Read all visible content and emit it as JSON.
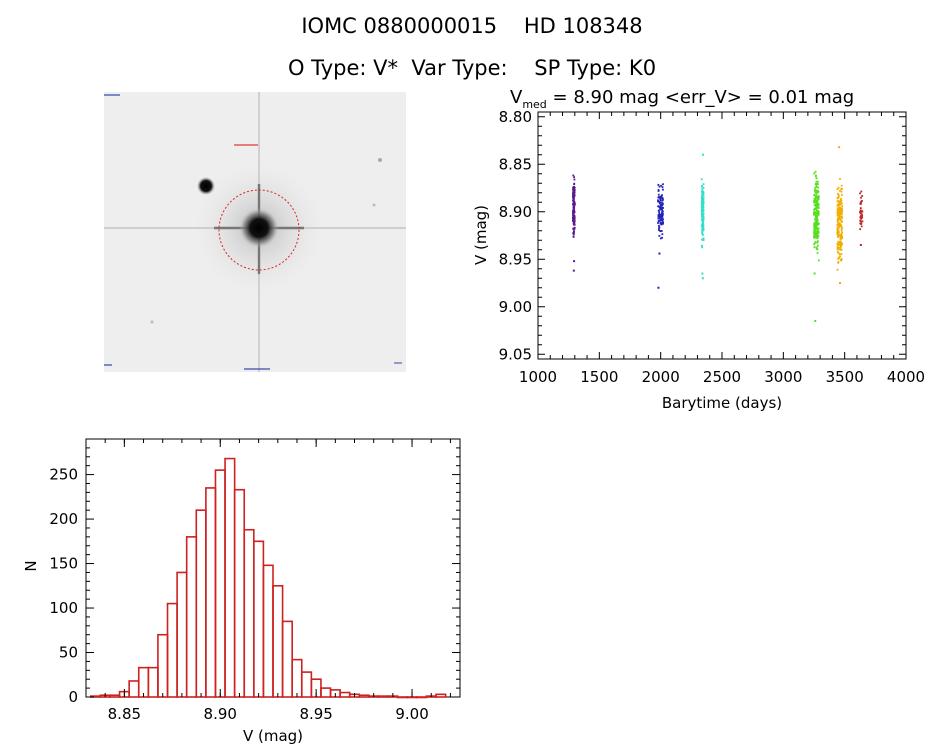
{
  "header": {
    "line1": "IOMC 0880000015    HD 108348",
    "line2": "O Type: V*  Var Type:    SP Type: K0"
  },
  "chart_data": [
    {
      "type": "image",
      "title": "",
      "description_elements": [
        "target-star",
        "companion-star",
        "aperture-circle"
      ]
    },
    {
      "type": "scatter",
      "title_vmed_label": "V",
      "title_vmed_sub": "med",
      "title_rest": " = 8.90 mag <err_V> = 0.01 mag",
      "xlabel": "Barytime (days)",
      "ylabel": "V (mag)",
      "xlim": [
        1000,
        4000
      ],
      "ylim": [
        9.055,
        8.795
      ],
      "y_inverted": true,
      "xticks": [
        1000,
        1500,
        2000,
        2500,
        3000,
        3500,
        4000
      ],
      "yticks": [
        "8.80",
        "8.85",
        "8.90",
        "8.95",
        "9.00",
        "9.05"
      ],
      "grid": false,
      "series": [
        {
          "color": "#5b1a8c",
          "x_range": [
            1285,
            1300
          ],
          "y_range": [
            8.86,
            8.935
          ],
          "count": 150,
          "outliers": [
            [
              1294,
              8.952
            ],
            [
              1292,
              8.962
            ]
          ]
        },
        {
          "color": "#2424b8",
          "x_range": [
            1978,
            2020
          ],
          "y_range": [
            8.865,
            8.935
          ],
          "count": 120,
          "outliers": [
            [
              1982,
              8.98
            ],
            [
              1990,
              8.944
            ]
          ]
        },
        {
          "color": "#33e0c8",
          "x_range": [
            2335,
            2350
          ],
          "y_range": [
            8.86,
            8.945
          ],
          "count": 160,
          "outliers": [
            [
              2345,
              8.84
            ],
            [
              2340,
              8.965
            ],
            [
              2344,
              8.97
            ]
          ]
        },
        {
          "color": "#58e020",
          "x_range": [
            3250,
            3290
          ],
          "y_range": [
            8.852,
            8.955
          ],
          "count": 240,
          "outliers": [
            [
              3260,
              9.015
            ],
            [
              3255,
              8.965
            ]
          ]
        },
        {
          "color": "#f0b000",
          "x_range": [
            3440,
            3480
          ],
          "y_range": [
            8.86,
            8.965
          ],
          "count": 200,
          "outliers": [
            [
              3455,
              8.832
            ],
            [
              3462,
              8.975
            ]
          ]
        },
        {
          "color": "#c02828",
          "x_range": [
            3625,
            3645
          ],
          "y_range": [
            8.872,
            8.925
          ],
          "count": 40,
          "outliers": [
            [
              3632,
              8.935
            ]
          ]
        }
      ]
    },
    {
      "type": "bar",
      "subtype": "histogram",
      "xlabel": "V (mag)",
      "ylabel": "N",
      "xlim": [
        8.83,
        9.025
      ],
      "ylim": [
        0,
        290
      ],
      "xticks": [
        "8.85",
        "8.90",
        "8.95",
        "9.00"
      ],
      "yticks": [
        "0",
        "50",
        "100",
        "150",
        "200",
        "250"
      ],
      "bar_color": "#cc2222",
      "bin_width": 0.005,
      "bins_start": [
        8.8325,
        8.8375,
        8.8425,
        8.8475,
        8.8525,
        8.8575,
        8.8625,
        8.8675,
        8.8725,
        8.8775,
        8.8825,
        8.8875,
        8.8925,
        8.8975,
        8.9025,
        8.9075,
        8.9125,
        8.9175,
        8.9225,
        8.9275,
        8.9325,
        8.9375,
        8.9425,
        8.9475,
        8.9525,
        8.9575,
        8.9625,
        8.9675,
        8.9725,
        8.9775,
        8.9825,
        8.9875,
        8.9925,
        8.9975,
        9.0025,
        9.0075,
        9.0125
      ],
      "counts": [
        1,
        2,
        2,
        6,
        18,
        33,
        33,
        70,
        105,
        140,
        180,
        210,
        235,
        255,
        268,
        233,
        188,
        175,
        148,
        125,
        85,
        42,
        28,
        20,
        10,
        8,
        5,
        3,
        2,
        1,
        1,
        1,
        0,
        0,
        0,
        1,
        3
      ]
    }
  ]
}
